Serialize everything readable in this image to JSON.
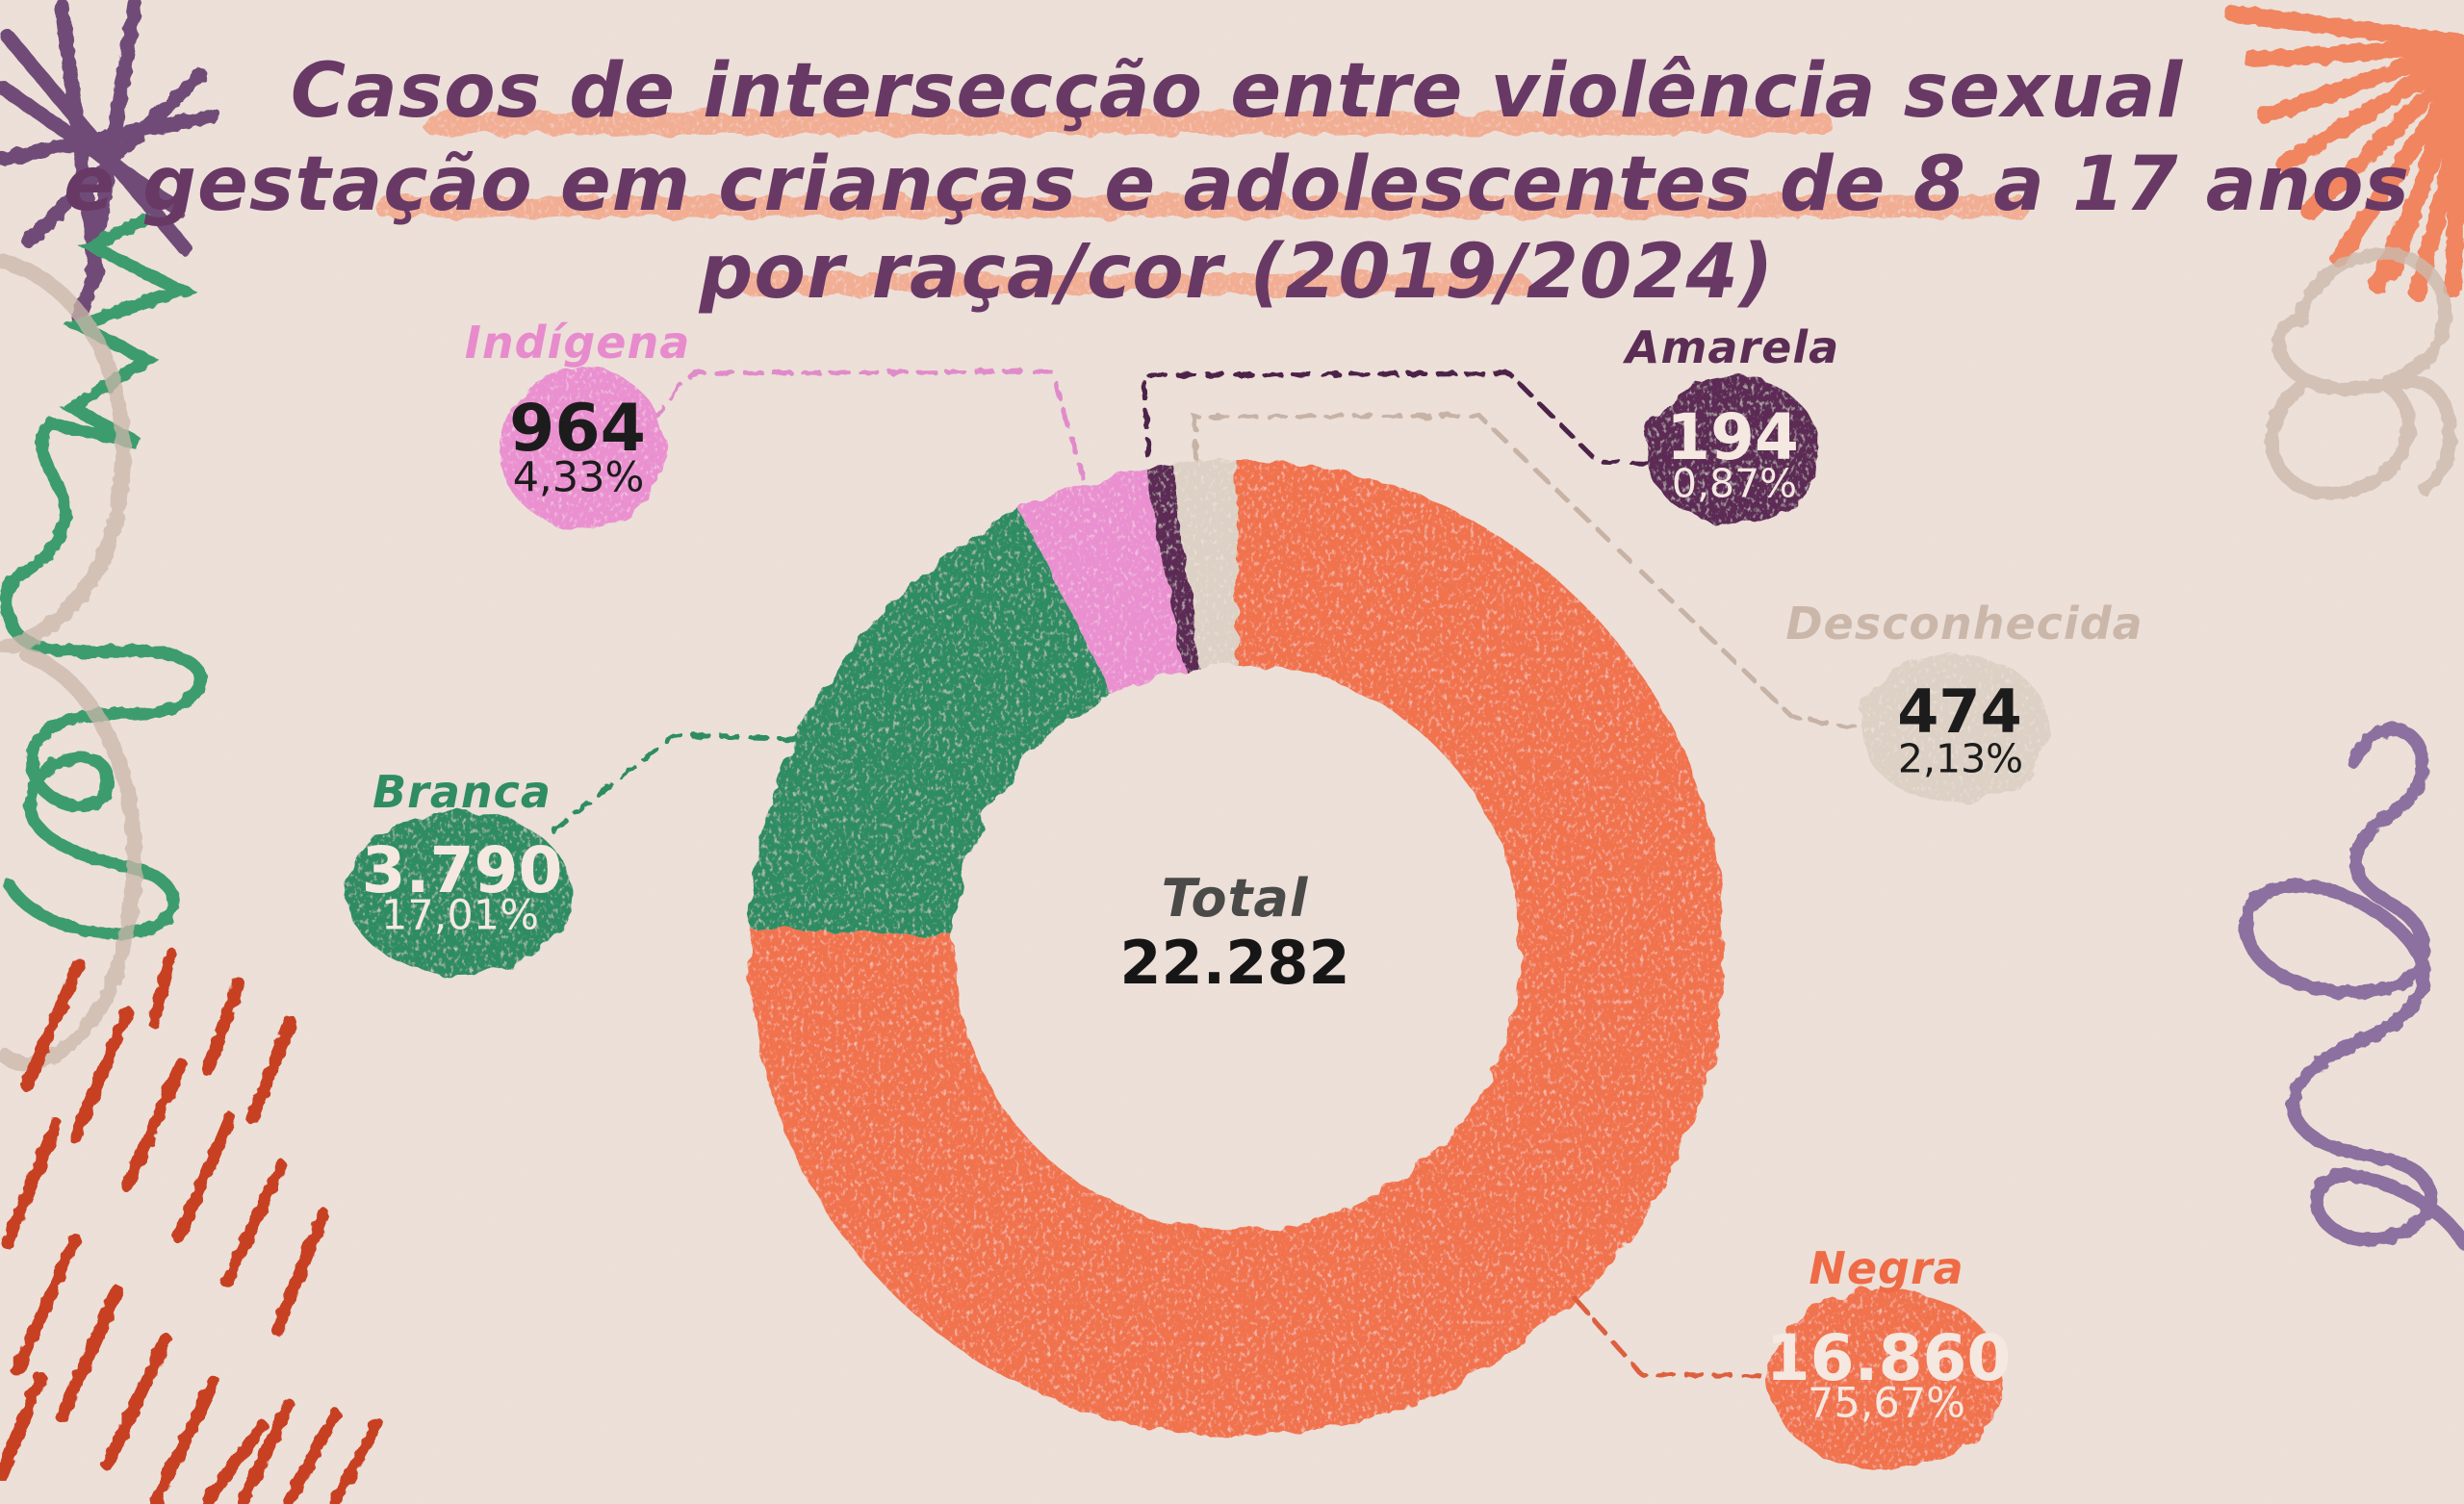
{
  "title": {
    "line1": "Casos de intersecção entre violência sexual",
    "line2": "e gestação em crianças e adolescentes de 8 a 17 anos",
    "line3": "por raça/cor (2019/2024)"
  },
  "colors": {
    "background": "#EDE1DA",
    "title_text": "#693966",
    "title_highlight": "#F3A183",
    "total_label": "#4A4A48",
    "total_value": "#161616"
  },
  "chart_data": {
    "type": "pie",
    "donut": true,
    "title": "Casos de intersecção entre violência sexual e gestação em crianças e adolescentes de 8 a 17 anos por raça/cor (2019/2024)",
    "total_label": "Total",
    "total_value": "22.282",
    "total_numeric": 22282,
    "start_angle_deg": 0,
    "direction": "clockwise",
    "inner_radius_ratio": 0.58,
    "legend_position": "callouts",
    "segments": [
      {
        "label": "Negra",
        "value": 16860,
        "value_text": "16.860",
        "percent": 75.67,
        "percent_text": "75,67%",
        "color": "#F1734E",
        "label_color": "#EF6B45",
        "line_color": "#DE5E3C",
        "text_color": "#F4E8E1"
      },
      {
        "label": "Branca",
        "value": 3790,
        "value_text": "3.790",
        "percent": 17.01,
        "percent_text": "17,01%",
        "color": "#2F8C63",
        "label_color": "#2F8C63",
        "line_color": "#2F8C63",
        "text_color": "#F4E8E1"
      },
      {
        "label": "Indígena",
        "value": 964,
        "value_text": "964",
        "percent": 4.33,
        "percent_text": "4,33%",
        "color": "#EA90D0",
        "label_color": "#E78BCD",
        "line_color": "#E08BC9",
        "text_color": "#1C1C1C"
      },
      {
        "label": "Amarela",
        "value": 194,
        "value_text": "194",
        "percent": 0.87,
        "percent_text": "0,87%",
        "color": "#5C2C54",
        "label_color": "#5B2D55",
        "line_color": "#4E2448",
        "text_color": "#F4E8E1"
      },
      {
        "label": "Desconhecida",
        "value": 474,
        "value_text": "474",
        "percent": 2.13,
        "percent_text": "2,13%",
        "color": "#DDD0C4",
        "label_color": "#CBB7AA",
        "line_color": "#C7B3A6",
        "text_color": "#1C1C1C"
      }
    ]
  }
}
